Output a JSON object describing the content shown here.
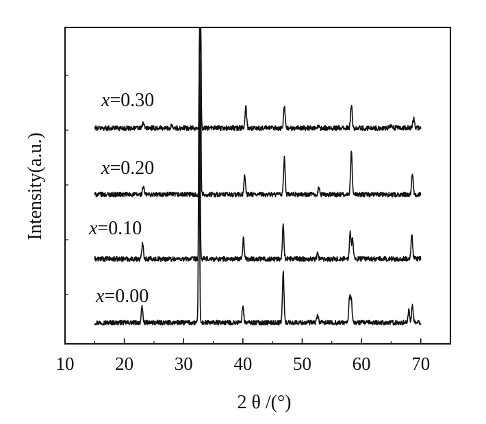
{
  "chart_data": {
    "type": "line",
    "xlabel": "2 θ /(°)",
    "ylabel": "Intensity(a.u.)",
    "xlim": [
      10,
      75
    ],
    "x_ticks": [
      10,
      20,
      30,
      40,
      50,
      60,
      70
    ],
    "x_tick_labels": [
      "10",
      "20",
      "30",
      "40",
      "50",
      "60",
      "70"
    ],
    "y_ticks_labeled": false,
    "grid": false,
    "legend": "inline labels at left of each trace",
    "x_range": [
      15,
      70
    ],
    "series": [
      {
        "name": "x=0.00",
        "label_var": "x",
        "label_value": "=0.00",
        "peaks": [
          {
            "x": 23.0,
            "h": 0.22
          },
          {
            "x": 32.6,
            "h": 3.5
          },
          {
            "x": 40.0,
            "h": 0.25
          },
          {
            "x": 46.8,
            "h": 0.75
          },
          {
            "x": 52.6,
            "h": 0.12
          },
          {
            "x": 58.0,
            "h": 0.4
          },
          {
            "x": 58.3,
            "h": 0.3
          },
          {
            "x": 68.0,
            "h": 0.2
          },
          {
            "x": 68.6,
            "h": 0.25
          }
        ]
      },
      {
        "name": "x=0.10",
        "label_var": "x",
        "label_value": "=0.10",
        "peaks": [
          {
            "x": 23.1,
            "h": 0.25
          },
          {
            "x": 32.7,
            "h": 2.9
          },
          {
            "x": 40.1,
            "h": 0.3
          },
          {
            "x": 46.8,
            "h": 0.5
          },
          {
            "x": 52.6,
            "h": 0.08
          },
          {
            "x": 58.1,
            "h": 0.42
          },
          {
            "x": 58.5,
            "h": 0.3
          },
          {
            "x": 68.5,
            "h": 0.35
          }
        ]
      },
      {
        "name": "x=0.20",
        "label_var": "x",
        "label_value": "=0.20",
        "peaks": [
          {
            "x": 23.2,
            "h": 0.12
          },
          {
            "x": 32.8,
            "h": 3.8
          },
          {
            "x": 40.3,
            "h": 0.28
          },
          {
            "x": 47.0,
            "h": 0.55
          },
          {
            "x": 52.8,
            "h": 0.1
          },
          {
            "x": 58.3,
            "h": 0.65
          },
          {
            "x": 68.6,
            "h": 0.33
          }
        ]
      },
      {
        "name": "x=0.30",
        "label_var": "x",
        "label_value": "=0.30",
        "peaks": [
          {
            "x": 23.2,
            "h": 0.08
          },
          {
            "x": 28.0,
            "h": 0.05
          },
          {
            "x": 32.8,
            "h": 4.8
          },
          {
            "x": 40.5,
            "h": 0.33
          },
          {
            "x": 47.0,
            "h": 0.33
          },
          {
            "x": 52.8,
            "h": 0.04
          },
          {
            "x": 58.3,
            "h": 0.35
          },
          {
            "x": 65.0,
            "h": 0.04
          },
          {
            "x": 68.8,
            "h": 0.15
          }
        ]
      }
    ]
  },
  "colors": {
    "trace": "#111111",
    "axis": "#111111",
    "background": "#ffffff"
  }
}
